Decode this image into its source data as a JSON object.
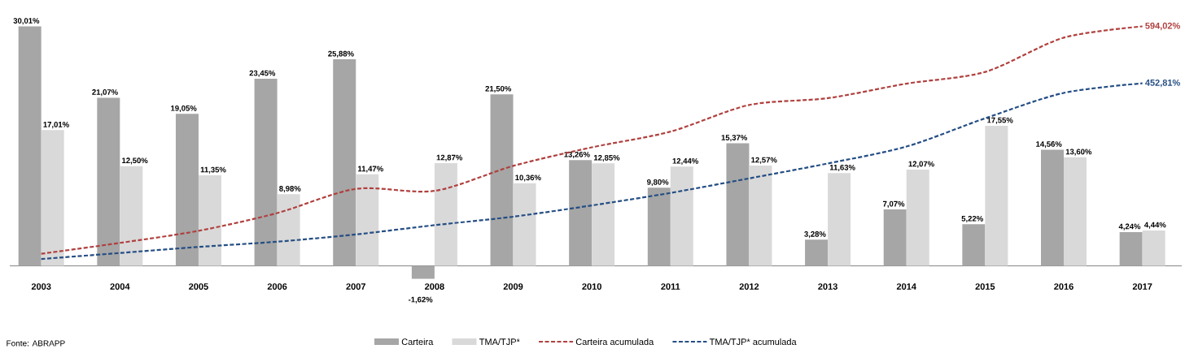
{
  "chart_data": {
    "type": "bar",
    "categories": [
      "2003",
      "2004",
      "2005",
      "2006",
      "2007",
      "2008",
      "2009",
      "2010",
      "2011",
      "2012",
      "2013",
      "2014",
      "2015",
      "2016",
      "2017"
    ],
    "series": [
      {
        "name": "Carteira",
        "color": "#a6a6a6",
        "values": [
          30.01,
          21.07,
          19.05,
          23.45,
          25.88,
          -1.62,
          21.5,
          13.26,
          9.8,
          15.37,
          3.28,
          7.07,
          5.22,
          14.56,
          4.24
        ],
        "value_labels": [
          "30,01%",
          "21,07%",
          "19,05%",
          "23,45%",
          "25,88%",
          "-1,62%",
          "21,50%",
          "13,26%",
          "9,80%",
          "15,37%",
          "3,28%",
          "7,07%",
          "5,22%",
          "14,56%",
          "4,24%"
        ]
      },
      {
        "name": "TMA/TJP*",
        "color": "#d9d9d9",
        "values": [
          17.01,
          12.5,
          11.35,
          8.98,
          11.47,
          12.87,
          10.36,
          12.85,
          12.44,
          12.57,
          11.63,
          12.07,
          17.55,
          13.6,
          4.44
        ],
        "value_labels": [
          "17,01%",
          "12,50%",
          "11,35%",
          "8,98%",
          "11,47%",
          "12,87%",
          "10,36%",
          "12,85%",
          "12,44%",
          "12,57%",
          "11,63%",
          "12,07%",
          "17,55%",
          "13,60%",
          "4,44%"
        ]
      },
      {
        "name": "Carteira acumulada",
        "type": "line",
        "axis": "y2",
        "color": "#b0403e",
        "values": [
          30,
          57,
          87,
          131,
          191,
          186,
          248,
          294,
          333,
          399,
          416,
          452,
          481,
          566,
          594.02
        ],
        "value_labels": [
          null,
          null,
          null,
          null,
          null,
          null,
          null,
          null,
          null,
          null,
          null,
          null,
          null,
          null,
          "594,02%"
        ]
      },
      {
        "name": "TMA/TJP* acumulada",
        "type": "line",
        "axis": "y2",
        "color": "#254e84",
        "values": [
          17,
          32,
          47,
          60,
          78,
          101,
          122,
          150,
          181,
          217,
          254,
          296,
          366,
          429,
          452.81
        ],
        "value_labels": [
          null,
          null,
          null,
          null,
          null,
          null,
          null,
          null,
          null,
          null,
          null,
          null,
          null,
          null,
          "452,81%"
        ]
      }
    ],
    "tick_labels": "x",
    "line_style": "dashed",
    "legend": "bottom",
    "annotations": [
      "Fonte: ABRAPP"
    ]
  }
}
